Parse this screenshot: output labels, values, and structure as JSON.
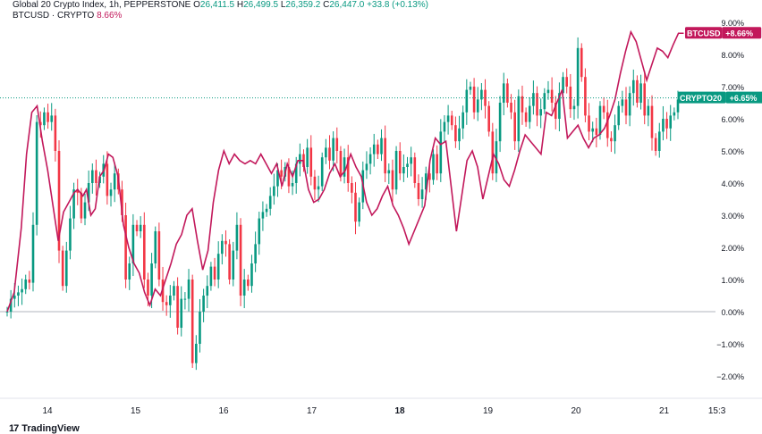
{
  "legend": {
    "main_name": "Global 20 Crypto Index, 1h, PEPPERSTONE",
    "o_label": "O",
    "o_value": "26,411.5",
    "h_label": "H",
    "h_value": "26,499.5",
    "l_label": "L",
    "l_value": "26,359.2",
    "c_label": "C",
    "c_value": "26,447.0",
    "change": "+33.8 (+0.13%)",
    "compare_name": "BTCUSD · CRYPTO",
    "compare_value": "8.66%"
  },
  "branding": {
    "text": "TradingView",
    "mark": "17"
  },
  "colors": {
    "up": "#089981",
    "down": "#f23645",
    "compare_line": "#c2185b",
    "zero_line": "#b2b5be",
    "axis_text": "#131722"
  },
  "chart_data": {
    "type": "line",
    "title": "",
    "ylim": [
      -2.6,
      9.3
    ],
    "y_scale": "percent",
    "y_ticks": [
      "9.00%",
      "8.00%",
      "7.00%",
      "6.00%",
      "5.00%",
      "4.00%",
      "3.00%",
      "2.00%",
      "1.00%",
      "0.00%",
      "−1.00%",
      "−2.00%"
    ],
    "y_tick_values": [
      9,
      8,
      7,
      6,
      5,
      4,
      3,
      2,
      1,
      0,
      -1,
      -2
    ],
    "x_ticks": [
      "14",
      "15",
      "16",
      "17",
      "18",
      "19",
      "20",
      "21",
      "15:3"
    ],
    "x_tick_positions": [
      0.5,
      1.5,
      2.5,
      3.5,
      4.5,
      5.5,
      6.5,
      7.5,
      8.1
    ],
    "x_tick_bold": [
      false,
      false,
      false,
      false,
      true,
      false,
      false,
      false,
      false
    ],
    "x_range": [
      0,
      8.15
    ],
    "price_labels": [
      {
        "name": "BTCUSD",
        "value": "+8.66%",
        "y": 8.66,
        "color": "#c2185b"
      },
      {
        "name": "CRYPTO20",
        "value": "+6.65%",
        "y": 6.65,
        "color": "#089981"
      }
    ],
    "series": [
      {
        "name": "CRYPTO20",
        "kind": "candlestick",
        "step": 0.045,
        "closes": [
          0,
          0.4,
          0.5,
          0.6,
          0.7,
          1,
          0.9,
          2.7,
          5.9,
          5.8,
          6.2,
          5.9,
          6.1,
          5.0,
          1.9,
          0.8,
          1.9,
          2.9,
          3.8,
          3.7,
          2.9,
          3.4,
          4.0,
          4.4,
          4.0,
          4.2,
          4.6,
          3.6,
          3.8,
          4.3,
          3.8,
          3.0,
          1.0,
          1.5,
          2.7,
          2.5,
          2.7,
          1.0,
          0.5,
          1.5,
          2.5,
          1.0,
          0.3,
          0.2,
          0.5,
          0.8,
          -0.5,
          0.4,
          0.4,
          1.0,
          -1.6,
          -1.0,
          0.0,
          0.5,
          0.8,
          1.4,
          1.0,
          1.8,
          2.2,
          2.1,
          1.0,
          1.9,
          2.7,
          0.5,
          1.0,
          0.8,
          1.5,
          2.1,
          2.9,
          3.1,
          3.2,
          3.6,
          3.9,
          4.4,
          4.2,
          4.5,
          3.9,
          4.0,
          4.6,
          4.9,
          4.5,
          5.1,
          4.2,
          3.8,
          3.9,
          4.8,
          5.1,
          4.7,
          5.4,
          5.0,
          4.2,
          4.8,
          4.0,
          3.7,
          2.8,
          3.4,
          4.4,
          4.6,
          4.9,
          5.2,
          4.9,
          5.4,
          4.3,
          4.4,
          3.8,
          5.0,
          4.3,
          4.5,
          4.6,
          4.8,
          4.0,
          3.5,
          3.8,
          4.3,
          4.1,
          4.9,
          4.3,
          5.6,
          5.9,
          6.1,
          5.8,
          5.3,
          5.7,
          6.2,
          6.9,
          7.0,
          6.2,
          6.6,
          6.9,
          6.4,
          5.6,
          4.3,
          5.3,
          6.5,
          7.1,
          6.5,
          6.2,
          5.3,
          6.7,
          6.2,
          5.9,
          6.4,
          6.8,
          6.1,
          6.3,
          6.8,
          6.9,
          6.5,
          6.0,
          6.8,
          7.3,
          7.0,
          6.3,
          6.4,
          8.2,
          7.3,
          6.1,
          5.6,
          5.7,
          5.5,
          6.4,
          6.2,
          5.4,
          5.3,
          5.8,
          6.4,
          6.6,
          6.1,
          6.8,
          7.2,
          6.5,
          7.1,
          6.1,
          6.4,
          5.4,
          5.0,
          5.6,
          6.0,
          5.7,
          6.1,
          6.2,
          6.6
        ],
        "color_up": "#089981",
        "color_down": "#f23645"
      },
      {
        "name": "BTCUSD",
        "kind": "line",
        "x": [
          0,
          0.08,
          0.16,
          0.22,
          0.28,
          0.34,
          0.4,
          0.46,
          0.52,
          0.58,
          0.64,
          0.7,
          0.76,
          0.8,
          0.86,
          0.9,
          0.95,
          1.0,
          1.05,
          1.1,
          1.15,
          1.2,
          1.26,
          1.32,
          1.38,
          1.44,
          1.5,
          1.56,
          1.62,
          1.68,
          1.74,
          1.8,
          1.86,
          1.92,
          1.98,
          2.04,
          2.1,
          2.16,
          2.22,
          2.28,
          2.34,
          2.4,
          2.46,
          2.52,
          2.58,
          2.64,
          2.7,
          2.76,
          2.82,
          2.88,
          2.94,
          3.0,
          3.06,
          3.12,
          3.18,
          3.24,
          3.3,
          3.36,
          3.42,
          3.48,
          3.54,
          3.6,
          3.66,
          3.72,
          3.78,
          3.84,
          3.9,
          3.96,
          4.02,
          4.08,
          4.14,
          4.2,
          4.26,
          4.32,
          4.38,
          4.44,
          4.5,
          4.56,
          4.62,
          4.68,
          4.74,
          4.8,
          4.86,
          4.92,
          4.98,
          5.04,
          5.1,
          5.16,
          5.22,
          5.28,
          5.34,
          5.4,
          5.46,
          5.52,
          5.58,
          5.64,
          5.7,
          5.76,
          5.82,
          5.88,
          5.94,
          6.0,
          6.06,
          6.12,
          6.18,
          6.24,
          6.3,
          6.36,
          6.42,
          6.48,
          6.54,
          6.6,
          6.66,
          6.72,
          6.78,
          6.84,
          6.9,
          6.96,
          7.02,
          7.08,
          7.14,
          7.2,
          7.26,
          7.32,
          7.38,
          7.44,
          7.5,
          7.56,
          7.62,
          7.68
        ],
        "y": [
          0,
          0.6,
          2.6,
          4.9,
          6.2,
          6.4,
          5.3,
          4.4,
          3.3,
          2.2,
          3.1,
          3.4,
          3.7,
          3.8,
          3.6,
          3.8,
          3.0,
          3.2,
          4.2,
          4.4,
          4.9,
          4.8,
          4.2,
          2.7,
          2.0,
          1.5,
          1.2,
          0.6,
          0.2,
          0.7,
          0.5,
          1.0,
          1.5,
          2.1,
          2.4,
          3.0,
          3.2,
          2.2,
          1.3,
          1.9,
          3.4,
          4.4,
          5.0,
          4.6,
          4.9,
          4.7,
          4.6,
          4.7,
          4.6,
          4.9,
          4.6,
          4.3,
          4.6,
          3.9,
          4.6,
          4.2,
          4.7,
          4.7,
          3.8,
          3.4,
          3.5,
          3.8,
          4.3,
          4.6,
          4.2,
          4.4,
          4.9,
          4.5,
          4.2,
          3.4,
          3.0,
          3.2,
          3.6,
          3.9,
          3.3,
          3.0,
          2.6,
          2.1,
          2.5,
          2.9,
          3.3,
          4.7,
          5.4,
          5.2,
          5.3,
          3.9,
          2.5,
          3.6,
          4.7,
          5.0,
          4.5,
          3.5,
          4.2,
          4.9,
          4.6,
          4.1,
          3.9,
          4.4,
          5.0,
          5.5,
          5.3,
          5.1,
          4.9,
          6.2,
          6.1,
          6.5,
          6.9,
          5.4,
          5.6,
          5.8,
          5.4,
          5.1,
          5.4,
          5.5,
          5.7,
          6.1,
          6.6,
          7.4,
          8.1,
          8.7,
          8.4,
          7.8,
          7.2,
          7.7,
          8.2,
          8.1,
          7.9,
          8.3,
          8.66,
          8.66
        ]
      }
    ]
  }
}
